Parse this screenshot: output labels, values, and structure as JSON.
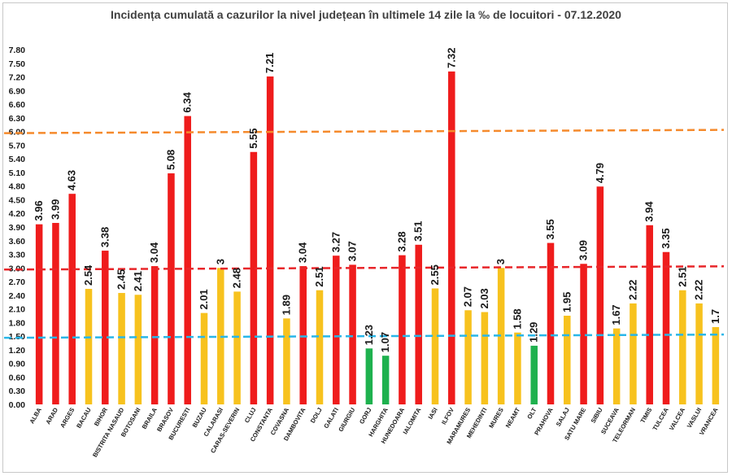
{
  "chart_data": {
    "type": "bar",
    "title": "Incidența cumulată a cazurilor la nivel județean în ultimele 14 zile la ‰ de locuitori - 07.12.2020",
    "xlabel": "",
    "ylabel": "",
    "ylim": [
      0,
      7.8
    ],
    "yticks": [
      "0.00",
      "0.30",
      "0.60",
      "0.90",
      "1.20",
      "1.50",
      "1.80",
      "2.10",
      "2.40",
      "2.70",
      "3.00",
      "3.30",
      "3.60",
      "3.90",
      "4.20",
      "4.50",
      "4.80",
      "5.10",
      "5.40",
      "5.70",
      "6.00",
      "6.30",
      "6.60",
      "6.90",
      "7.20",
      "7.50",
      "7.80"
    ],
    "grid": false,
    "legend": "none",
    "categories": [
      "ALBA",
      "ARAD",
      "ARGES",
      "BACAU",
      "BIHOR",
      "BISTRITA NASAUD",
      "BOTOSANI",
      "BRAILA",
      "BRASOV",
      "BUCURESTI",
      "BUZAU",
      "CALARASI",
      "CARAS-SEVERIN",
      "CLUJ",
      "CONSTANTA",
      "COVASNA",
      "DAMBOVITA",
      "DOLJ",
      "GALATI",
      "GIURGIU",
      "GORJ",
      "HARGHITA",
      "HUNEDOARA",
      "IALOMITA",
      "IASI",
      "ILFOV",
      "MARAMURES",
      "MEHEDINTI",
      "MURES",
      "NEAMT",
      "OLT",
      "PRAHOVA",
      "SALAJ",
      "SATU MARE",
      "SIBIU",
      "SUCEAVA",
      "TELEORMAN",
      "TIMIS",
      "TULCEA",
      "VALCEA",
      "VASLUI",
      "VRANCEA"
    ],
    "values": [
      3.96,
      3.99,
      4.63,
      2.54,
      3.38,
      2.45,
      2.41,
      3.04,
      5.08,
      6.34,
      2.01,
      3,
      2.48,
      5.55,
      7.21,
      1.89,
      3.04,
      2.51,
      3.27,
      3.07,
      1.23,
      1.07,
      3.28,
      3.51,
      2.55,
      7.32,
      2.07,
      2.03,
      3,
      1.58,
      1.29,
      3.55,
      1.95,
      3.09,
      4.79,
      1.67,
      2.22,
      3.94,
      3.35,
      2.51,
      2.22,
      1.7
    ],
    "value_labels": [
      "3.96",
      "3.99",
      "4.63",
      "2.54",
      "3.38",
      "2.45",
      "2.41",
      "3.04",
      "5.08",
      "6.34",
      "2.01",
      "3",
      "2.48",
      "5.55",
      "7.21",
      "1.89",
      "3.04",
      "2.51",
      "3.27",
      "3.07",
      "1.23",
      "1.07",
      "3.28",
      "3.51",
      "2.55",
      "7.32",
      "2.07",
      "2.03",
      "3",
      "1.58",
      "1.29",
      "3.55",
      "1.95",
      "3.09",
      "4.79",
      "1.67",
      "2.22",
      "3.94",
      "3.35",
      "2.51",
      "2.22",
      "1.7"
    ],
    "thresholds": [
      {
        "value": 1.5,
        "color": "#29b6e8"
      },
      {
        "value": 3.0,
        "color": "#e8262a"
      },
      {
        "value": 6.0,
        "color": "#f58a2c"
      }
    ],
    "colors": {
      "green": "#1eb14e",
      "yellow": "#f7c21e",
      "red": "#ef1c1c"
    }
  }
}
